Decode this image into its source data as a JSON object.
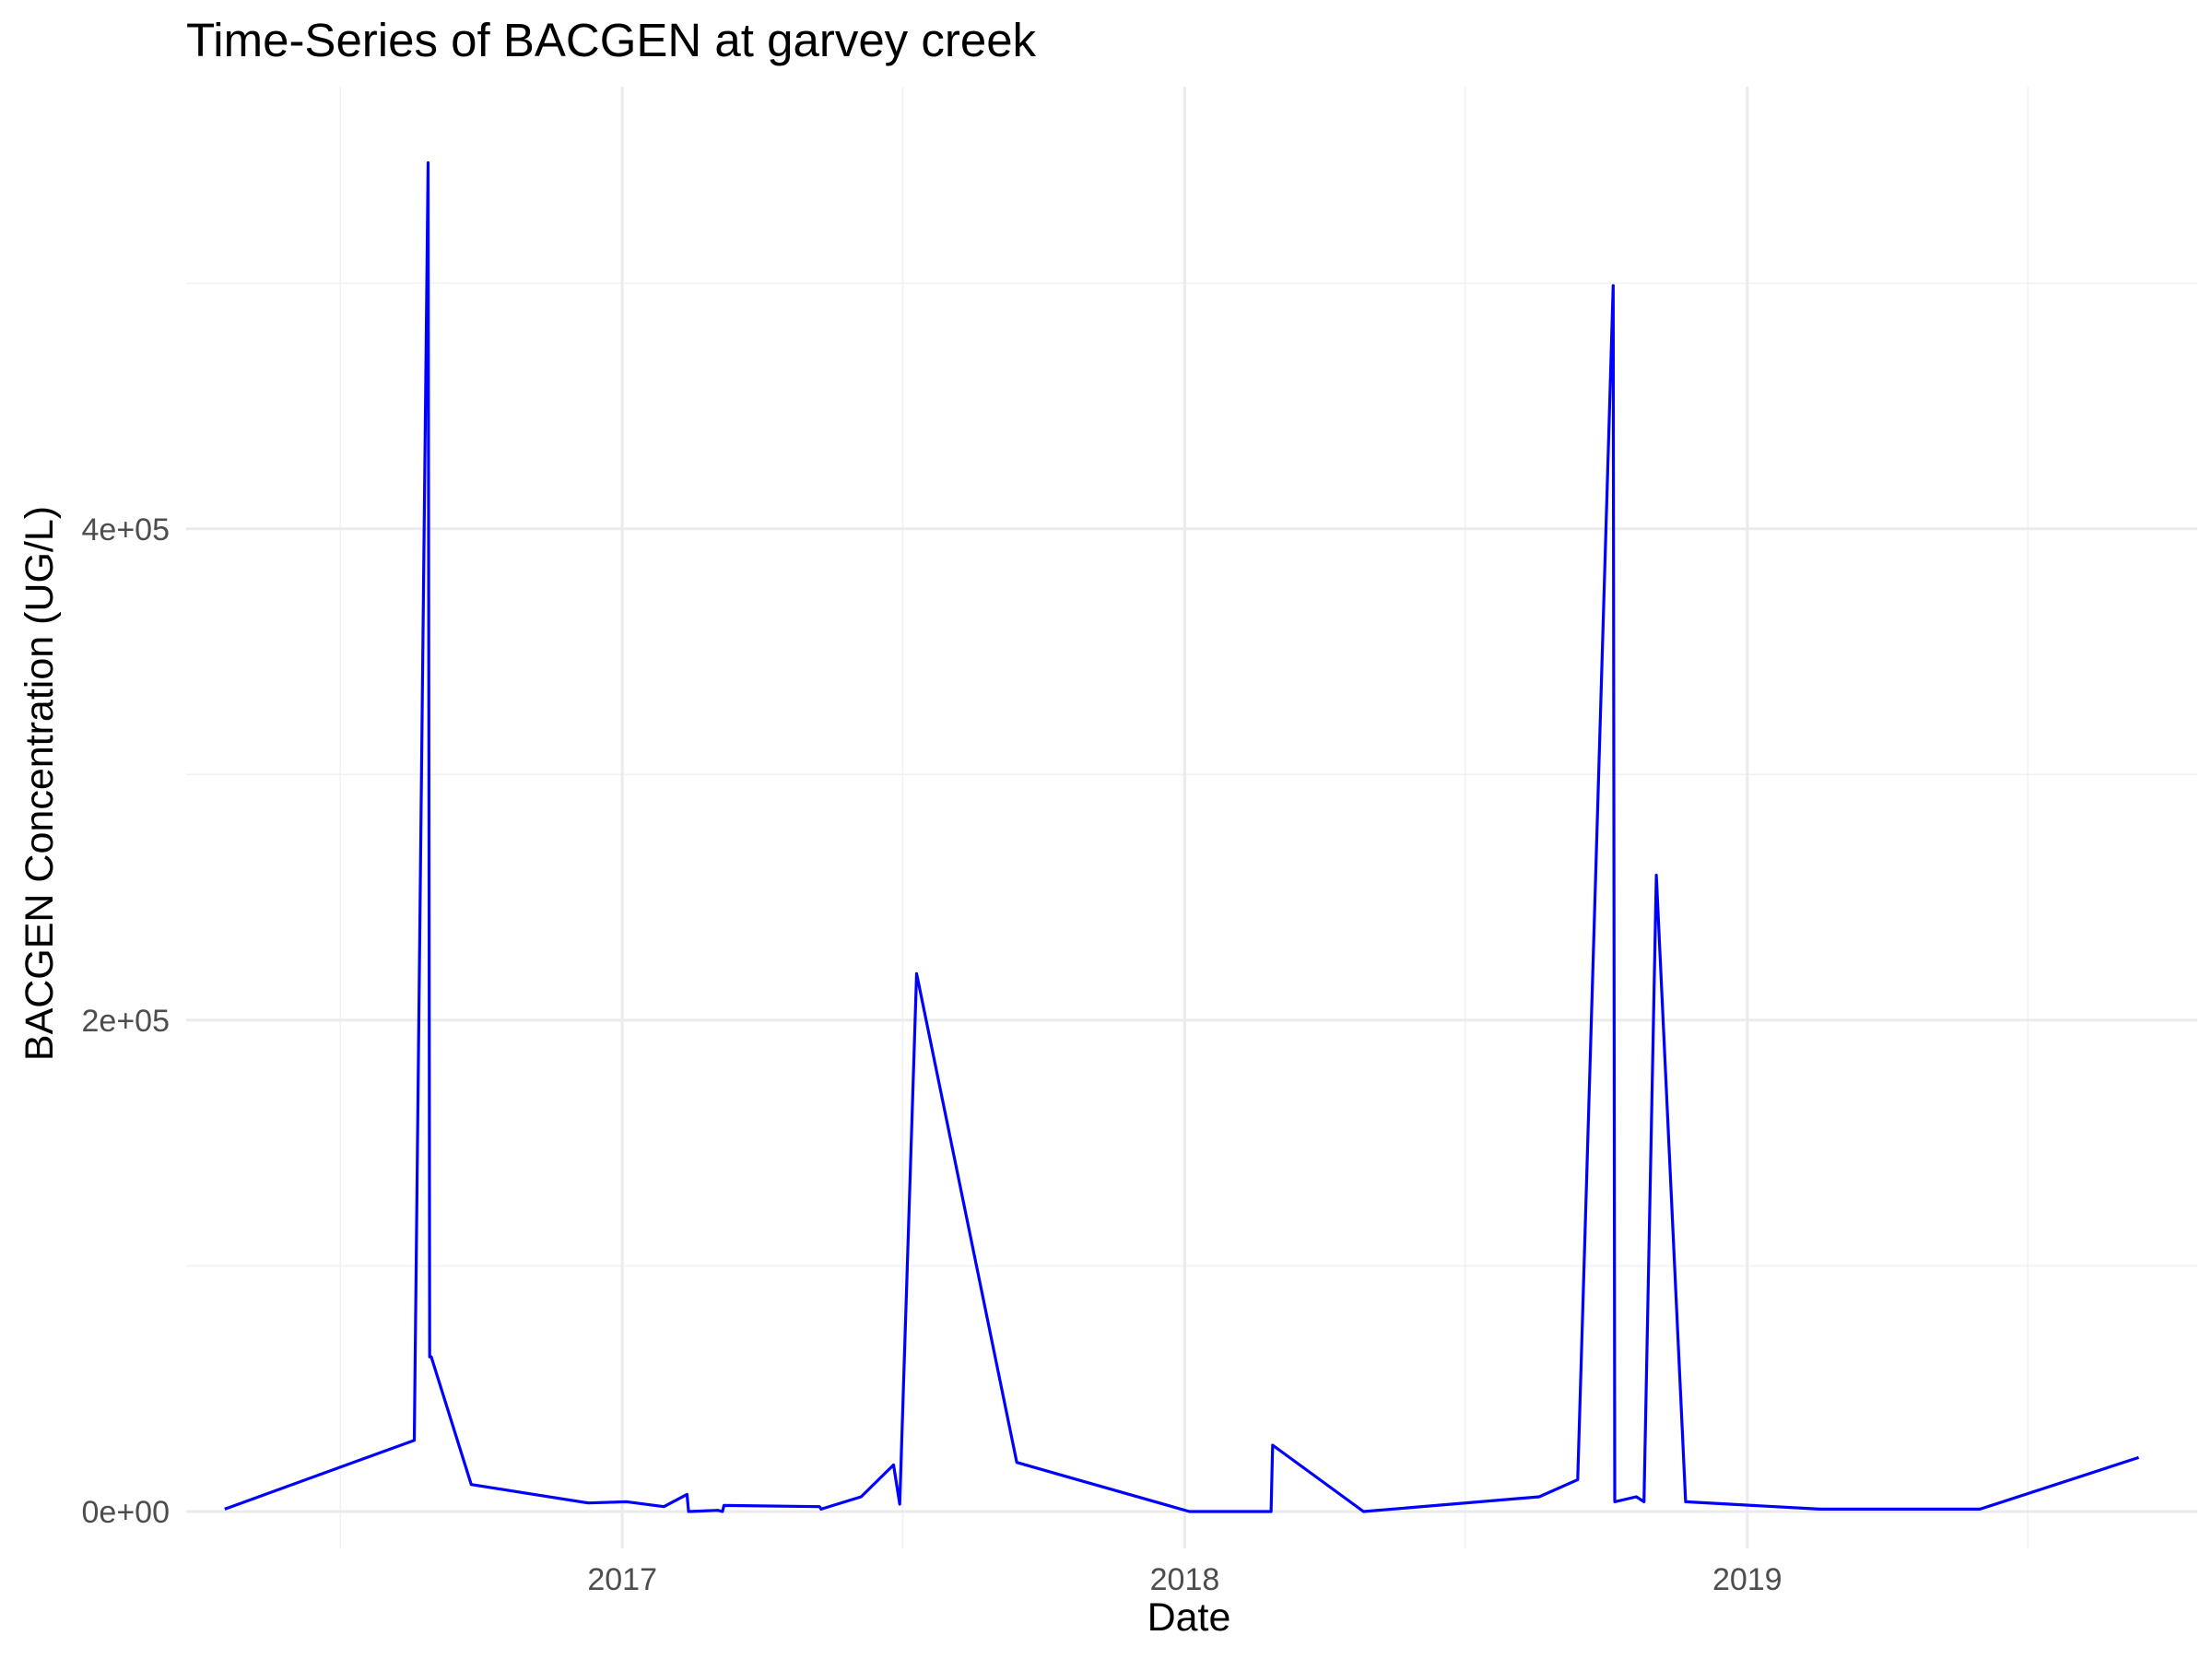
{
  "chart_data": {
    "type": "line",
    "title": "Time-Series of BACGEN at garvey creek",
    "xlabel": "Date",
    "ylabel": "BACGEN Concentration (UG/L)",
    "x_type": "date",
    "xlim": [
      "2016-03-24",
      "2019-10-20"
    ],
    "ylim": [
      -15000,
      580000
    ],
    "x_ticks": [
      {
        "value": "2017-01-01",
        "label": "2017"
      },
      {
        "value": "2018-01-01",
        "label": "2018"
      },
      {
        "value": "2019-01-01",
        "label": "2019"
      }
    ],
    "x_minor_ticks": [
      "2016-07-02",
      "2017-07-02",
      "2018-07-02",
      "2019-07-02"
    ],
    "y_ticks": [
      {
        "value": 0,
        "label": "0e+00"
      },
      {
        "value": 200000,
        "label": "2e+05"
      },
      {
        "value": 400000,
        "label": "4e+05"
      }
    ],
    "y_minor_ticks": [
      100000,
      300000,
      500000
    ],
    "grid": true,
    "legend": "none",
    "series_color": "#0000ff",
    "series": [
      {
        "x": [
          "2016-04-18",
          "2016-08-19",
          "2016-08-28",
          "2016-08-29",
          "2016-08-30",
          "2016-09-25",
          "2016-12-10",
          "2017-01-04",
          "2017-01-28",
          "2017-02-12",
          "2017-02-13",
          "2017-03-04",
          "2017-03-07",
          "2017-03-08",
          "2017-05-09",
          "2017-05-10",
          "2017-06-05",
          "2017-06-26",
          "2017-06-30",
          "2017-07-11",
          "2017-09-14",
          "2018-01-04",
          "2018-02-26",
          "2018-02-27",
          "2018-04-27",
          "2018-08-19",
          "2018-09-13",
          "2018-10-06",
          "2018-10-07",
          "2018-10-21",
          "2018-10-26",
          "2018-11-03",
          "2018-11-22",
          "2019-02-17",
          "2019-03-19",
          "2019-06-01",
          "2019-09-12"
        ],
        "y": [
          1000,
          29000,
          549000,
          63000,
          63000,
          11000,
          3500,
          4000,
          2000,
          7000,
          0,
          500,
          0,
          2500,
          2000,
          1000,
          6000,
          19000,
          3000,
          219000,
          20000,
          0,
          0,
          27000,
          0,
          6000,
          13000,
          499000,
          4000,
          6000,
          4000,
          259000,
          4000,
          1000,
          1000,
          1000,
          22000
        ]
      }
    ]
  }
}
